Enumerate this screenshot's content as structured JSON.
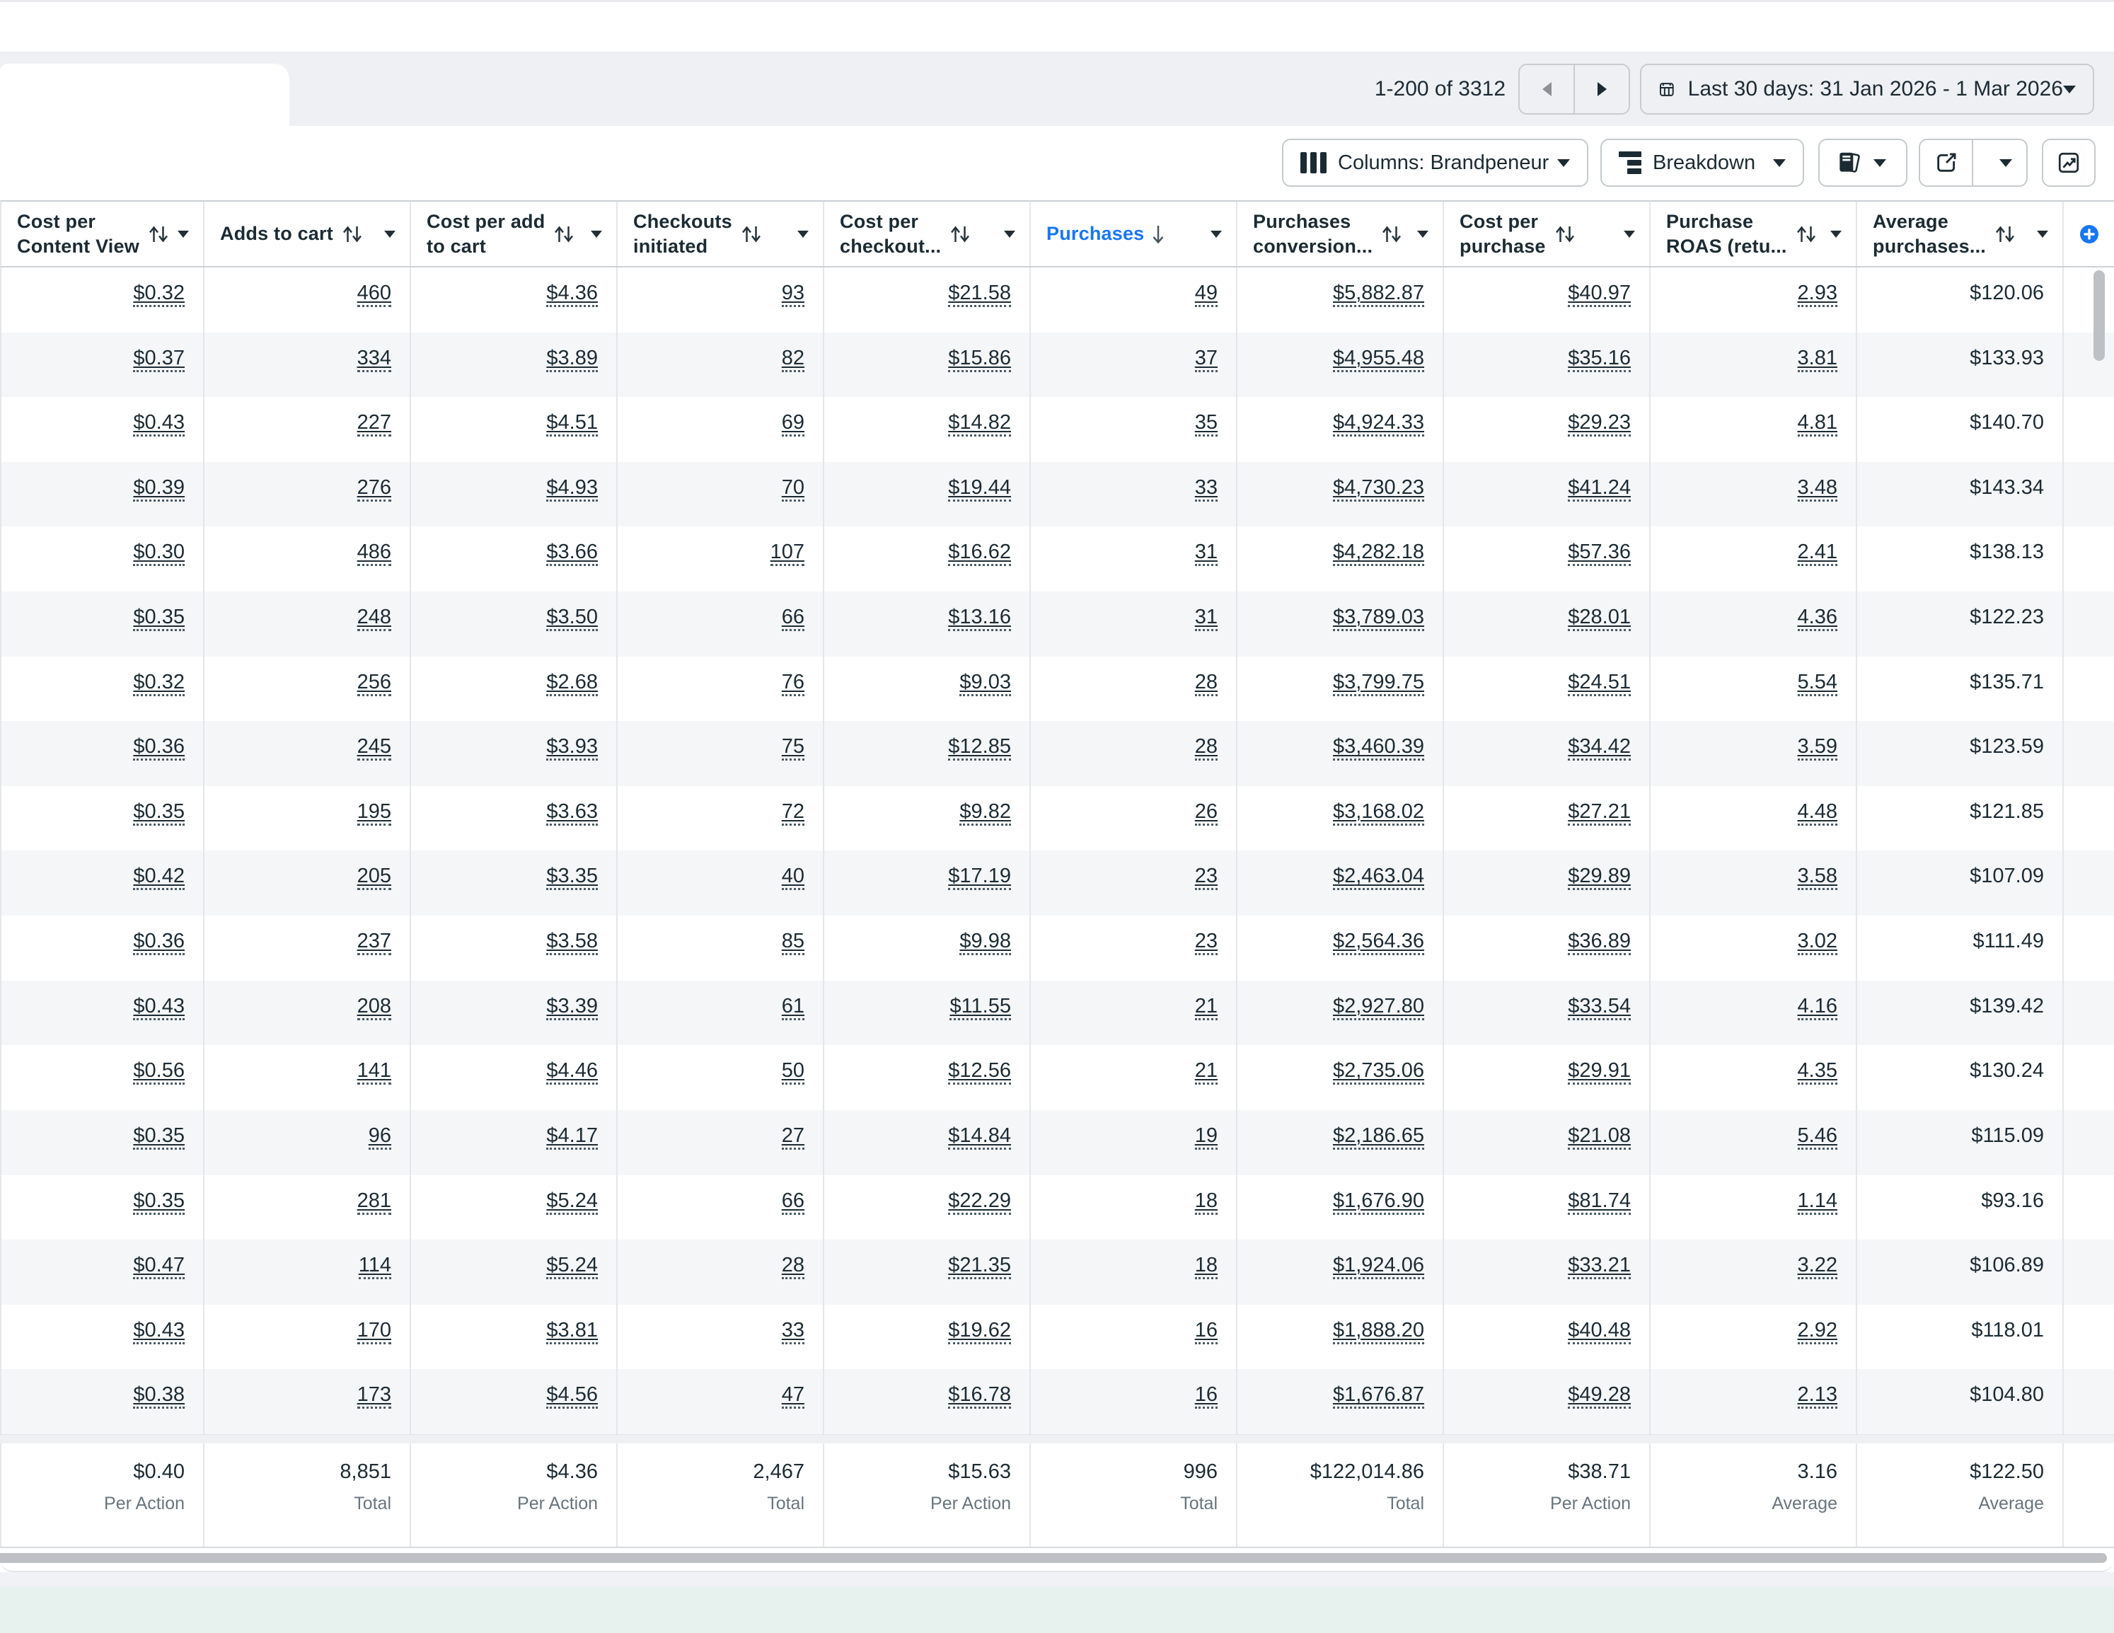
{
  "pagination": {
    "range_text": "1-200 of 3312"
  },
  "date_filter": {
    "label": "Last 30 days: 31 Jan 2026 - 1 Mar 2026"
  },
  "toolbar": {
    "columns_label": "Columns: Brandpeneur",
    "breakdown_label": "Breakdown"
  },
  "icons": {
    "calendar": "calendar-icon",
    "prev": "chevron-left-icon",
    "next": "chevron-right-icon",
    "columns": "columns-icon",
    "breakdown": "breakdown-icon",
    "reports": "reports-icon",
    "export": "export-icon",
    "charts": "charts-icon",
    "add_column": "add-circle-icon"
  },
  "colors": {
    "accent_blue": "#1877f2",
    "text_dark": "#1c2b33",
    "alt_row": "#f5f6f8",
    "teal_strip": "#e7f1ee"
  },
  "table": {
    "columns": [
      {
        "label": "Cost per\nContent View",
        "sort": "both",
        "underline": true
      },
      {
        "label": "Adds to cart",
        "sort": "both",
        "underline": true
      },
      {
        "label": "Cost per add\nto cart",
        "sort": "both",
        "underline": true
      },
      {
        "label": "Checkouts\ninitiated",
        "sort": "both",
        "underline": true
      },
      {
        "label": "Cost per\ncheckout...",
        "sort": "both",
        "underline": true
      },
      {
        "label": "Purchases",
        "sort": "desc",
        "active": true,
        "underline": true
      },
      {
        "label": "Purchases\nconversion...",
        "sort": "both",
        "underline": true
      },
      {
        "label": "Cost per\npurchase",
        "sort": "both",
        "underline": true
      },
      {
        "label": "Purchase\nROAS (retu...",
        "sort": "both",
        "underline": true
      },
      {
        "label": "Average\npurchases...",
        "sort": "both",
        "underline": false
      }
    ],
    "rows": [
      [
        "$0.32",
        "460",
        "$4.36",
        "93",
        "$21.58",
        "49",
        "$5,882.87",
        "$40.97",
        "2.93",
        "$120.06"
      ],
      [
        "$0.37",
        "334",
        "$3.89",
        "82",
        "$15.86",
        "37",
        "$4,955.48",
        "$35.16",
        "3.81",
        "$133.93"
      ],
      [
        "$0.43",
        "227",
        "$4.51",
        "69",
        "$14.82",
        "35",
        "$4,924.33",
        "$29.23",
        "4.81",
        "$140.70"
      ],
      [
        "$0.39",
        "276",
        "$4.93",
        "70",
        "$19.44",
        "33",
        "$4,730.23",
        "$41.24",
        "3.48",
        "$143.34"
      ],
      [
        "$0.30",
        "486",
        "$3.66",
        "107",
        "$16.62",
        "31",
        "$4,282.18",
        "$57.36",
        "2.41",
        "$138.13"
      ],
      [
        "$0.35",
        "248",
        "$3.50",
        "66",
        "$13.16",
        "31",
        "$3,789.03",
        "$28.01",
        "4.36",
        "$122.23"
      ],
      [
        "$0.32",
        "256",
        "$2.68",
        "76",
        "$9.03",
        "28",
        "$3,799.75",
        "$24.51",
        "5.54",
        "$135.71"
      ],
      [
        "$0.36",
        "245",
        "$3.93",
        "75",
        "$12.85",
        "28",
        "$3,460.39",
        "$34.42",
        "3.59",
        "$123.59"
      ],
      [
        "$0.35",
        "195",
        "$3.63",
        "72",
        "$9.82",
        "26",
        "$3,168.02",
        "$27.21",
        "4.48",
        "$121.85"
      ],
      [
        "$0.42",
        "205",
        "$3.35",
        "40",
        "$17.19",
        "23",
        "$2,463.04",
        "$29.89",
        "3.58",
        "$107.09"
      ],
      [
        "$0.36",
        "237",
        "$3.58",
        "85",
        "$9.98",
        "23",
        "$2,564.36",
        "$36.89",
        "3.02",
        "$111.49"
      ],
      [
        "$0.43",
        "208",
        "$3.39",
        "61",
        "$11.55",
        "21",
        "$2,927.80",
        "$33.54",
        "4.16",
        "$139.42"
      ],
      [
        "$0.56",
        "141",
        "$4.46",
        "50",
        "$12.56",
        "21",
        "$2,735.06",
        "$29.91",
        "4.35",
        "$130.24"
      ],
      [
        "$0.35",
        "96",
        "$4.17",
        "27",
        "$14.84",
        "19",
        "$2,186.65",
        "$21.08",
        "5.46",
        "$115.09"
      ],
      [
        "$0.35",
        "281",
        "$5.24",
        "66",
        "$22.29",
        "18",
        "$1,676.90",
        "$81.74",
        "1.14",
        "$93.16"
      ],
      [
        "$0.47",
        "114",
        "$5.24",
        "28",
        "$21.35",
        "18",
        "$1,924.06",
        "$33.21",
        "3.22",
        "$106.89"
      ],
      [
        "$0.43",
        "170",
        "$3.81",
        "33",
        "$19.62",
        "16",
        "$1,888.20",
        "$40.48",
        "2.92",
        "$118.01"
      ],
      [
        "$0.38",
        "173",
        "$4.56",
        "47",
        "$16.78",
        "16",
        "$1,676.87",
        "$49.28",
        "2.13",
        "$104.80"
      ]
    ],
    "totals": [
      {
        "value": "$0.40",
        "label": "Per Action"
      },
      {
        "value": "8,851",
        "label": "Total"
      },
      {
        "value": "$4.36",
        "label": "Per Action"
      },
      {
        "value": "2,467",
        "label": "Total"
      },
      {
        "value": "$15.63",
        "label": "Per Action"
      },
      {
        "value": "996",
        "label": "Total"
      },
      {
        "value": "$122,014.86",
        "label": "Total"
      },
      {
        "value": "$38.71",
        "label": "Per Action"
      },
      {
        "value": "3.16",
        "label": "Average"
      },
      {
        "value": "$122.50",
        "label": "Average"
      }
    ]
  }
}
